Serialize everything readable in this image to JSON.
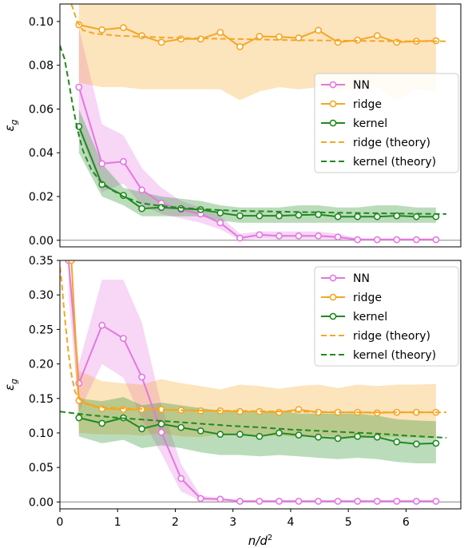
{
  "chart_data": [
    {
      "type": "line",
      "ylabel": "ε_g",
      "xlabel": "",
      "xlim": [
        0,
        6.95
      ],
      "ylim": [
        -0.003,
        0.108
      ],
      "x_ticks": [],
      "y_ticks": [
        0.0,
        0.02,
        0.04,
        0.06,
        0.08,
        0.1
      ],
      "y_tick_labels": [
        "0.00",
        "0.02",
        "0.04",
        "0.06",
        "0.08",
        "0.10"
      ],
      "hline": 0,
      "legend_position": "center-right",
      "legend": [
        "NN",
        "ridge",
        "kernel",
        "ridge (theory)",
        "kernel (theory)"
      ],
      "series": [
        {
          "name": "NN",
          "color": "#e377e0",
          "style": "solid-markers",
          "x": [
            0.33,
            0.73,
            1.1,
            1.42,
            1.76,
            2.1,
            2.44,
            2.78,
            3.12,
            3.46,
            3.8,
            4.14,
            4.48,
            4.82,
            5.16,
            5.5,
            5.84,
            6.18,
            6.52
          ],
          "y": [
            0.07,
            0.035,
            0.036,
            0.023,
            0.017,
            0.014,
            0.012,
            0.008,
            0.001,
            0.0025,
            0.002,
            0.002,
            0.002,
            0.0015,
            0.0003,
            0.0003,
            0.0003,
            0.0003,
            0.0003
          ],
          "upper": [
            0.097,
            0.053,
            0.048,
            0.033,
            0.024,
            0.018,
            0.015,
            0.011,
            0.003,
            0.004,
            0.004,
            0.004,
            0.004,
            0.003,
            0.001,
            0.001,
            0.001,
            0.001,
            0.001
          ],
          "lower": [
            0.05,
            0.022,
            0.026,
            0.016,
            0.012,
            0.01,
            0.008,
            0.005,
            0.0,
            0.0008,
            0.0005,
            0.0005,
            0.0005,
            0.0003,
            0.0,
            0.0,
            0.0,
            0.0,
            0.0
          ]
        },
        {
          "name": "ridge",
          "color": "#f5a623",
          "style": "solid-markers",
          "x": [
            0.33,
            0.73,
            1.1,
            1.42,
            1.76,
            2.1,
            2.44,
            2.78,
            3.12,
            3.46,
            3.8,
            4.14,
            4.48,
            4.82,
            5.16,
            5.5,
            5.84,
            6.18,
            6.52
          ],
          "y": [
            0.0985,
            0.0962,
            0.0972,
            0.0935,
            0.0905,
            0.092,
            0.092,
            0.095,
            0.0885,
            0.0932,
            0.093,
            0.0925,
            0.096,
            0.0905,
            0.0915,
            0.0935,
            0.0905,
            0.091,
            0.0912
          ],
          "upper": [
            0.108,
            0.108,
            0.108,
            0.108,
            0.108,
            0.108,
            0.108,
            0.108,
            0.108,
            0.108,
            0.108,
            0.108,
            0.108,
            0.108,
            0.108,
            0.108,
            0.108,
            0.108,
            0.108
          ],
          "lower": [
            0.072,
            0.07,
            0.07,
            0.069,
            0.069,
            0.069,
            0.069,
            0.069,
            0.064,
            0.068,
            0.07,
            0.069,
            0.07,
            0.068,
            0.069,
            0.07,
            0.064,
            0.069,
            0.068
          ]
        },
        {
          "name": "kernel",
          "color": "#1f8a1f",
          "style": "solid-markers",
          "x": [
            0.33,
            0.73,
            1.1,
            1.42,
            1.76,
            2.1,
            2.44,
            2.78,
            3.12,
            3.46,
            3.8,
            4.14,
            4.48,
            4.82,
            5.16,
            5.5,
            5.84,
            6.18,
            6.52
          ],
          "y": [
            0.052,
            0.0255,
            0.0205,
            0.0145,
            0.015,
            0.0145,
            0.014,
            0.0125,
            0.0112,
            0.0112,
            0.0112,
            0.0115,
            0.0118,
            0.0108,
            0.0108,
            0.0108,
            0.0112,
            0.0108,
            0.0108
          ],
          "upper": [
            0.06,
            0.035,
            0.024,
            0.022,
            0.02,
            0.019,
            0.018,
            0.016,
            0.015,
            0.015,
            0.015,
            0.016,
            0.016,
            0.015,
            0.015,
            0.016,
            0.016,
            0.015,
            0.015
          ],
          "lower": [
            0.04,
            0.02,
            0.016,
            0.011,
            0.011,
            0.011,
            0.011,
            0.009,
            0.008,
            0.008,
            0.008,
            0.008,
            0.008,
            0.008,
            0.008,
            0.008,
            0.008,
            0.008,
            0.008
          ]
        },
        {
          "name": "ridge (theory)",
          "color": "#f5a623",
          "style": "dashed",
          "x": [
            0.2,
            0.3,
            0.4,
            0.6,
            1.0,
            1.5,
            2.0,
            3.0,
            4.0,
            5.0,
            6.0,
            6.7
          ],
          "y": [
            0.108,
            0.1,
            0.096,
            0.0945,
            0.0935,
            0.093,
            0.0925,
            0.092,
            0.0915,
            0.0912,
            0.091,
            0.091
          ]
        },
        {
          "name": "kernel (theory)",
          "color": "#1f8a1f",
          "style": "dashed",
          "x": [
            0.0,
            0.08,
            0.15,
            0.22,
            0.3,
            0.4,
            0.55,
            0.7,
            0.9,
            1.1,
            1.4,
            1.8,
            2.3,
            3.0,
            4.0,
            5.0,
            6.0,
            6.7
          ],
          "y": [
            0.089,
            0.083,
            0.073,
            0.062,
            0.051,
            0.041,
            0.032,
            0.027,
            0.023,
            0.02,
            0.017,
            0.0155,
            0.0145,
            0.0135,
            0.013,
            0.0125,
            0.0122,
            0.012
          ]
        }
      ]
    },
    {
      "type": "line",
      "ylabel": "ε_g",
      "xlabel": "n/d²",
      "xlim": [
        0,
        6.95
      ],
      "ylim": [
        -0.01,
        0.35
      ],
      "x_ticks": [
        0,
        1,
        2,
        3,
        4,
        5,
        6
      ],
      "x_tick_labels": [
        "0",
        "1",
        "2",
        "3",
        "4",
        "5",
        "6"
      ],
      "y_ticks": [
        0.0,
        0.05,
        0.1,
        0.15,
        0.2,
        0.25,
        0.3,
        0.35
      ],
      "y_tick_labels": [
        "0.00",
        "0.05",
        "0.10",
        "0.15",
        "0.20",
        "0.25",
        "0.30",
        "0.35"
      ],
      "hline": 0,
      "legend_position": "top-right",
      "legend": [
        "NN",
        "ridge",
        "kernel",
        "ridge (theory)",
        "kernel (theory)"
      ],
      "series": [
        {
          "name": "NN",
          "color": "#e377e0",
          "style": "solid-markers",
          "x": [
            0.15,
            0.33,
            0.73,
            1.1,
            1.42,
            1.76,
            2.1,
            2.44,
            2.78,
            3.12,
            3.46,
            3.8,
            4.14,
            4.48,
            4.82,
            5.16,
            5.5,
            5.84,
            6.18,
            6.52
          ],
          "y": [
            0.35,
            0.172,
            0.256,
            0.237,
            0.181,
            0.101,
            0.034,
            0.005,
            0.004,
            0.001,
            0.001,
            0.001,
            0.001,
            0.001,
            0.001,
            0.001,
            0.001,
            0.001,
            0.001,
            0.001
          ],
          "upper": [
            0.35,
            0.2,
            0.322,
            0.322,
            0.26,
            0.14,
            0.055,
            0.009,
            0.006,
            0.003,
            0.003,
            0.003,
            0.003,
            0.003,
            0.003,
            0.003,
            0.003,
            0.003,
            0.003,
            0.003
          ],
          "lower": [
            0.3,
            0.13,
            0.2,
            0.18,
            0.12,
            0.07,
            0.015,
            0.002,
            0.001,
            0.0,
            0.0,
            0.0,
            0.0,
            0.0,
            0.0,
            0.0,
            0.0,
            0.0,
            0.0,
            0.0
          ]
        },
        {
          "name": "ridge",
          "color": "#f5a623",
          "style": "solid-markers",
          "x": [
            0.2,
            0.33,
            0.73,
            1.1,
            1.42,
            1.76,
            2.1,
            2.44,
            2.78,
            3.12,
            3.46,
            3.8,
            4.14,
            4.48,
            4.82,
            5.16,
            5.5,
            5.84,
            6.18,
            6.52
          ],
          "y": [
            0.35,
            0.147,
            0.135,
            0.134,
            0.134,
            0.134,
            0.133,
            0.132,
            0.132,
            0.131,
            0.131,
            0.13,
            0.134,
            0.13,
            0.13,
            0.13,
            0.129,
            0.13,
            0.13,
            0.13
          ],
          "upper": [
            0.35,
            0.19,
            0.175,
            0.172,
            0.17,
            0.178,
            0.172,
            0.168,
            0.163,
            0.17,
            0.168,
            0.164,
            0.168,
            0.17,
            0.165,
            0.17,
            0.168,
            0.17,
            0.17,
            0.171
          ],
          "lower": [
            0.3,
            0.1,
            0.098,
            0.098,
            0.096,
            0.1,
            0.095,
            0.094,
            0.098,
            0.097,
            0.096,
            0.096,
            0.094,
            0.097,
            0.094,
            0.092,
            0.094,
            0.094,
            0.093,
            0.092
          ]
        },
        {
          "name": "kernel",
          "color": "#1f8a1f",
          "style": "solid-markers",
          "x": [
            0.33,
            0.73,
            1.1,
            1.42,
            1.76,
            2.1,
            2.44,
            2.78,
            3.12,
            3.46,
            3.8,
            4.14,
            4.48,
            4.82,
            5.16,
            5.5,
            5.84,
            6.18,
            6.52
          ],
          "y": [
            0.122,
            0.114,
            0.122,
            0.106,
            0.113,
            0.108,
            0.103,
            0.098,
            0.098,
            0.095,
            0.1,
            0.097,
            0.094,
            0.092,
            0.095,
            0.094,
            0.087,
            0.084,
            0.085
          ],
          "upper": [
            0.15,
            0.146,
            0.152,
            0.14,
            0.144,
            0.14,
            0.136,
            0.132,
            0.13,
            0.13,
            0.132,
            0.128,
            0.128,
            0.128,
            0.128,
            0.125,
            0.12,
            0.118,
            0.117
          ],
          "lower": [
            0.095,
            0.085,
            0.09,
            0.078,
            0.082,
            0.078,
            0.072,
            0.068,
            0.068,
            0.066,
            0.068,
            0.066,
            0.064,
            0.062,
            0.064,
            0.062,
            0.058,
            0.056,
            0.056
          ]
        },
        {
          "name": "ridge (theory)",
          "color": "#f5a623",
          "style": "dashed",
          "x": [
            0.0,
            0.03,
            0.06,
            0.1,
            0.15,
            0.2,
            0.26,
            0.33,
            0.45,
            0.6,
            1.0,
            2.0,
            3.0,
            4.0,
            5.0,
            6.0,
            6.7
          ],
          "y": [
            0.34,
            0.32,
            0.29,
            0.255,
            0.215,
            0.185,
            0.16,
            0.15,
            0.142,
            0.138,
            0.136,
            0.133,
            0.132,
            0.131,
            0.13,
            0.13,
            0.13
          ]
        },
        {
          "name": "kernel (theory)",
          "color": "#1f8a1f",
          "style": "dashed",
          "x": [
            0.0,
            0.5,
            1.0,
            1.5,
            2.0,
            2.5,
            3.0,
            3.5,
            4.0,
            4.5,
            5.0,
            5.5,
            6.0,
            6.7
          ],
          "y": [
            0.131,
            0.126,
            0.122,
            0.119,
            0.116,
            0.113,
            0.11,
            0.108,
            0.105,
            0.103,
            0.101,
            0.099,
            0.096,
            0.093
          ]
        }
      ]
    }
  ]
}
